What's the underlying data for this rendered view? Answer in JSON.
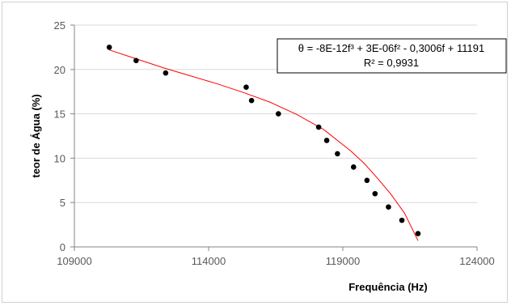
{
  "chart_data": {
    "type": "scatter",
    "title": "",
    "xlabel": "Frequência (Hz)",
    "ylabel": "teor de Água (%)",
    "xlim": [
      109000,
      124000
    ],
    "ylim": [
      0,
      25
    ],
    "x_ticks": [
      "109000",
      "114000",
      "119000",
      "124000"
    ],
    "y_ticks": [
      "0",
      "5",
      "10",
      "15",
      "20",
      "25"
    ],
    "x_tick_values": [
      109000,
      114000,
      119000,
      124000
    ],
    "y_tick_values": [
      0,
      5,
      10,
      15,
      20,
      25
    ],
    "grid": "horizontal",
    "colors": {
      "points": "#000000",
      "trendline": "#ff0000",
      "axis": "#868686",
      "grid": "#d9d9d9"
    },
    "points": [
      {
        "x": 110300,
        "y": 22.5
      },
      {
        "x": 111300,
        "y": 21.0
      },
      {
        "x": 112400,
        "y": 19.6
      },
      {
        "x": 115400,
        "y": 18.0
      },
      {
        "x": 115600,
        "y": 16.5
      },
      {
        "x": 116600,
        "y": 15.0
      },
      {
        "x": 118100,
        "y": 13.5
      },
      {
        "x": 118400,
        "y": 12.0
      },
      {
        "x": 118800,
        "y": 10.5
      },
      {
        "x": 119400,
        "y": 9.0
      },
      {
        "x": 119900,
        "y": 7.5
      },
      {
        "x": 120200,
        "y": 6.0
      },
      {
        "x": 120700,
        "y": 4.5
      },
      {
        "x": 121200,
        "y": 3.0
      },
      {
        "x": 121800,
        "y": 1.5
      }
    ],
    "trendline": {
      "type": "polynomial-3",
      "x_range": [
        110300,
        121800
      ],
      "curve": [
        {
          "x": 110300,
          "y": 22.2
        },
        {
          "x": 111300,
          "y": 21.2
        },
        {
          "x": 112300,
          "y": 20.2
        },
        {
          "x": 113300,
          "y": 19.3
        },
        {
          "x": 114300,
          "y": 18.4
        },
        {
          "x": 115300,
          "y": 17.4
        },
        {
          "x": 116300,
          "y": 16.3
        },
        {
          "x": 117300,
          "y": 14.9
        },
        {
          "x": 118300,
          "y": 13.2
        },
        {
          "x": 119300,
          "y": 10.8
        },
        {
          "x": 119800,
          "y": 9.4
        },
        {
          "x": 120300,
          "y": 7.7
        },
        {
          "x": 120800,
          "y": 5.9
        },
        {
          "x": 121300,
          "y": 3.8
        },
        {
          "x": 121800,
          "y": 0.7
        }
      ]
    },
    "equation_box": {
      "equation": "θ = -8E-12f³ + 3E-06f² - 0,3006f + 11191",
      "r_squared": "R² = 0,9931",
      "placement": "top-right"
    }
  }
}
